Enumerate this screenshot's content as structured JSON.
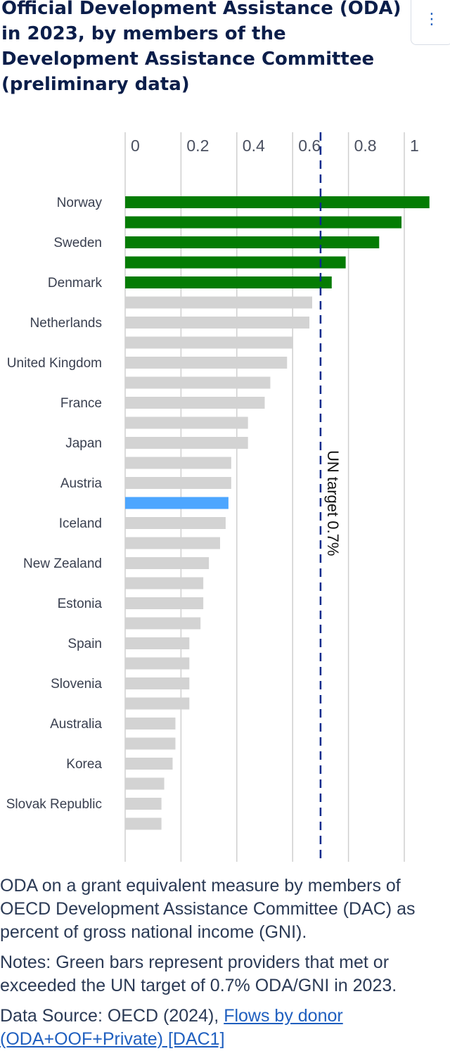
{
  "header": {
    "title": "Official Development Assistance (ODA) in 2023, by members of the Development Assistance Committee (preliminary data)",
    "menu_icon": "vertical-ellipsis-icon"
  },
  "chart_data": {
    "type": "bar",
    "orientation": "horizontal",
    "categories": [
      "Norway",
      "",
      "Sweden",
      "",
      "Denmark",
      "",
      "Netherlands",
      "",
      "United Kingdom",
      "",
      "France",
      "",
      "Japan",
      "",
      "Austria",
      "",
      "Iceland",
      "",
      "New Zealand",
      "",
      "Estonia",
      "",
      "Spain",
      "",
      "Slovenia",
      "",
      "Australia",
      "",
      "Korea",
      "",
      "Slovak Republic",
      ""
    ],
    "values": [
      1.09,
      0.99,
      0.91,
      0.79,
      0.74,
      0.67,
      0.66,
      0.6,
      0.58,
      0.52,
      0.5,
      0.44,
      0.44,
      0.38,
      0.38,
      0.37,
      0.36,
      0.34,
      0.3,
      0.28,
      0.28,
      0.27,
      0.23,
      0.23,
      0.23,
      0.23,
      0.18,
      0.18,
      0.17,
      0.14,
      0.13,
      0.13
    ],
    "highlight_index": 15,
    "xlim": [
      0,
      1.1
    ],
    "xticks": [
      "0",
      "0.2",
      "0.4",
      "0.6",
      "0.8",
      "1"
    ],
    "xtick_values": [
      0,
      0.2,
      0.4,
      0.6,
      0.8,
      1
    ],
    "grid": true,
    "reference_line": {
      "value": 0.7,
      "label": "UN target 0.7%",
      "color": "#0b2a8c"
    },
    "colors": {
      "met_target": "#047c04",
      "default": "#d3d3d3",
      "highlight": "#4da6ff"
    }
  },
  "footer": {
    "description": "ODA on a grant equivalent measure by members of OECD Development Assistance Committee (DAC) as percent of gross national income (GNI).",
    "notes": "Notes: Green bars represent providers that met or exceeded the UN target of 0.7% ODA/GNI in 2023.",
    "source_prefix": "Data Source: OECD (2024), ",
    "source_link": "Flows by donor (ODA+OOF+Private) [DAC1]"
  }
}
